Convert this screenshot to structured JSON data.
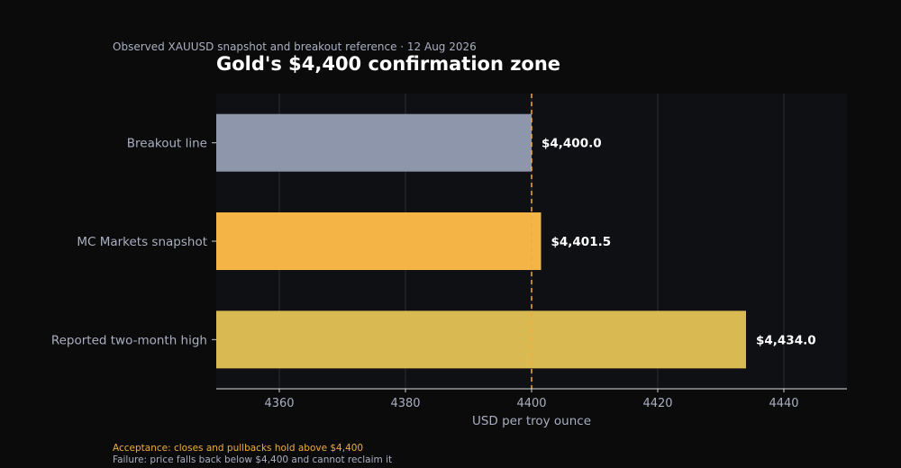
{
  "header": {
    "subtitle": "Observed XAUUSD snapshot and breakout reference · 12 Aug 2026",
    "title": "Gold's $4,400 confirmation zone"
  },
  "chart_data": {
    "type": "bar",
    "orientation": "horizontal",
    "categories": [
      "Breakout line",
      "MC Markets snapshot",
      "Reported two-month high"
    ],
    "values": [
      4400.0,
      4401.5,
      4434.0
    ],
    "value_labels": [
      "$4,400.0",
      "$4,401.5",
      "$4,434.0"
    ],
    "bar_colors": [
      "#8d96aa",
      "#f4b546",
      "#d9b951"
    ],
    "xlabel": "USD per troy ounce",
    "ylabel": "",
    "xlim": [
      4350,
      4450
    ],
    "xticks": [
      4360,
      4380,
      4400,
      4420,
      4440
    ],
    "reference_line": {
      "value": 4400,
      "color": "#f0ad3c",
      "style": "dashed"
    },
    "grid": "vertical",
    "plot_background": "#0f1014",
    "axis_text_color": "#a9afc0"
  },
  "notes": {
    "acceptance": "Acceptance: closes and pullbacks hold above $4,400",
    "failure": "Failure: price falls back below $4,400 and cannot reclaim it"
  }
}
